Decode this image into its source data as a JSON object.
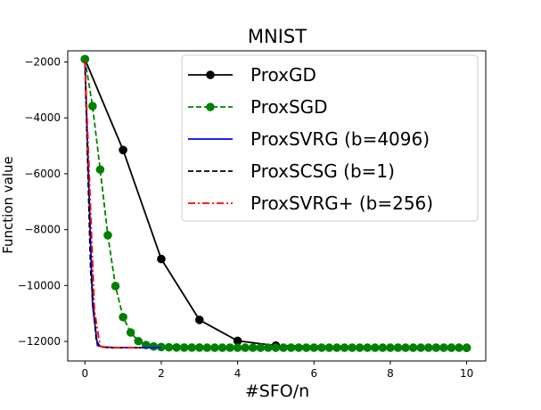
{
  "chart_data": {
    "type": "line",
    "title": "MNIST",
    "xlabel": "#SFO/n",
    "ylabel": "Function value",
    "xlim": [
      -0.45,
      10.5
    ],
    "ylim": [
      -12700,
      -1600
    ],
    "xticks": [
      0,
      2,
      4,
      6,
      8,
      10
    ],
    "yticks": [
      -2000,
      -4000,
      -6000,
      -8000,
      -10000,
      -12000
    ],
    "xtick_labels": [
      "0",
      "2",
      "4",
      "6",
      "8",
      "10"
    ],
    "ytick_labels": [
      "−2000",
      "−4000",
      "−6000",
      "−8000",
      "−10000",
      "−12000"
    ],
    "grid": false,
    "legend_position": "top-right",
    "series": [
      {
        "name": "ProxGD",
        "color": "#000000",
        "line": "solid",
        "marker": "circle",
        "x": [
          0,
          1,
          2,
          3,
          4,
          5,
          10
        ],
        "y": [
          -1900,
          -5150,
          -9050,
          -11230,
          -11980,
          -12150,
          -12230
        ]
      },
      {
        "name": "ProxSGD",
        "color": "#008000",
        "line": "dashed",
        "marker": "circle",
        "x": [
          0,
          0.2,
          0.4,
          0.6,
          0.8,
          1.0,
          1.2,
          1.4,
          1.6,
          1.8,
          2.0,
          2.2,
          2.4,
          2.6,
          2.8,
          3.0,
          3.2,
          3.4,
          3.6,
          3.8,
          4.0,
          4.2,
          4.4,
          4.6,
          4.8,
          5.0,
          5.2,
          5.4,
          5.6,
          5.8,
          6.0,
          6.2,
          6.4,
          6.6,
          6.8,
          7.0,
          7.2,
          7.4,
          7.6,
          7.8,
          8.0,
          8.2,
          8.4,
          8.6,
          8.8,
          9.0,
          9.2,
          9.4,
          9.6,
          9.8,
          10.0
        ],
        "y": [
          -1900,
          -3580,
          -5850,
          -8200,
          -10020,
          -11130,
          -11680,
          -11990,
          -12130,
          -12180,
          -12200,
          -12210,
          -12215,
          -12220,
          -12220,
          -12220,
          -12225,
          -12225,
          -12225,
          -12225,
          -12225,
          -12225,
          -12225,
          -12225,
          -12225,
          -12225,
          -12225,
          -12225,
          -12225,
          -12225,
          -12225,
          -12225,
          -12225,
          -12225,
          -12225,
          -12225,
          -12225,
          -12225,
          -12225,
          -12225,
          -12225,
          -12225,
          -12225,
          -12225,
          -12225,
          -12225,
          -12225,
          -12225,
          -12225,
          -12225,
          -12225
        ]
      },
      {
        "name": "ProxSVRG (b=4096)",
        "color": "#0000ff",
        "line": "solid",
        "marker": "none",
        "x": [
          0,
          0.2,
          0.33,
          0.5,
          0.75,
          1.0,
          1.5,
          2.0
        ],
        "y": [
          -1950,
          -10700,
          -12150,
          -12200,
          -12220,
          -12220,
          -12225,
          -12225
        ]
      },
      {
        "name": "ProxSCSG (b=1)",
        "color": "#000000",
        "line": "dashed",
        "marker": "none",
        "x": [
          0,
          0.15,
          0.3,
          0.4,
          0.5,
          0.75,
          1.0,
          1.5
        ],
        "y": [
          -2000,
          -9500,
          -12000,
          -12180,
          -12210,
          -12225,
          -12225,
          -12225
        ]
      },
      {
        "name": "ProxSVRG+ (b=256)",
        "color": "#ff0000",
        "line": "dashdot",
        "marker": "none",
        "x": [
          0,
          0.25,
          0.4,
          0.6,
          1.0,
          1.5
        ],
        "y": [
          -1950,
          -10900,
          -12180,
          -12210,
          -12220,
          -12225
        ]
      }
    ]
  }
}
